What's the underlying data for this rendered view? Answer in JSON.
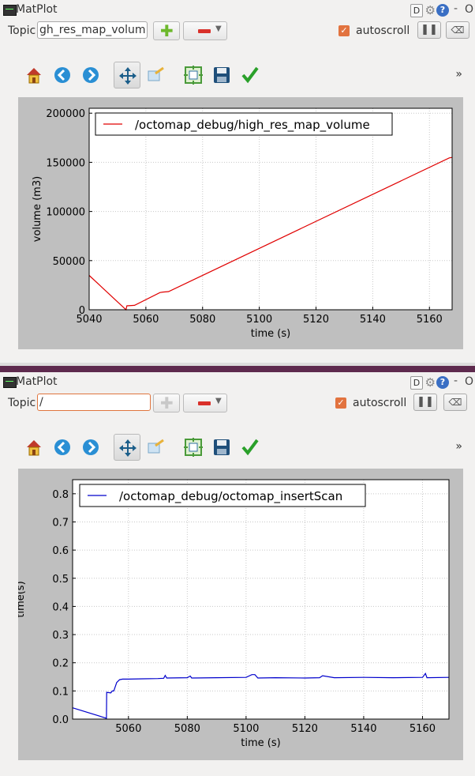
{
  "panels": [
    {
      "title": "MatPlot",
      "topic_label": "Topic",
      "topic_value": "gh_res_map_volume",
      "autoscroll_label": "autoscroll",
      "more_label": "»",
      "chart_data": {
        "type": "line",
        "xlabel": "time (s)",
        "ylabel": "volume (m3)",
        "xlim": [
          5040,
          5168
        ],
        "ylim": [
          0,
          205000
        ],
        "x_ticks": [
          5040,
          5060,
          5080,
          5100,
          5120,
          5140,
          5160
        ],
        "x_tick_labels": [
          "5040",
          "5060",
          "5080",
          "5100",
          "5120",
          "5140",
          "5160"
        ],
        "y_ticks": [
          0,
          50000,
          100000,
          150000,
          200000
        ],
        "y_tick_labels": [
          "0",
          "50000",
          "100000",
          "150000",
          "200000"
        ],
        "grid": true,
        "legend_position": "top-left",
        "series": [
          {
            "name": "/octomap_debug/high_res_map_volume",
            "color": "#e00000",
            "x": [
              5040,
              5053,
              5053.3,
              5056,
              5065,
              5066,
              5068,
              5167,
              5168
            ],
            "y": [
              35000,
              0,
              4000,
              4500,
              17500,
              18000,
              18500,
              154500,
              155000
            ]
          }
        ]
      }
    },
    {
      "title": "MatPlot",
      "topic_label": "Topic",
      "topic_value": "/",
      "autoscroll_label": "autoscroll",
      "more_label": "»",
      "chart_data": {
        "type": "line",
        "xlabel": "time (s)",
        "ylabel": "time(s)",
        "xlim": [
          5041,
          5169
        ],
        "ylim": [
          0,
          0.85
        ],
        "x_ticks": [
          5060,
          5080,
          5100,
          5120,
          5140,
          5160
        ],
        "x_tick_labels": [
          "5060",
          "5080",
          "5100",
          "5120",
          "5140",
          "5160"
        ],
        "y_ticks": [
          0,
          0.1,
          0.2,
          0.3,
          0.4,
          0.5,
          0.6,
          0.7,
          0.8
        ],
        "y_tick_labels": [
          "0.0",
          "0.1",
          "0.2",
          "0.3",
          "0.4",
          "0.5",
          "0.6",
          "0.7",
          "0.8"
        ],
        "grid": true,
        "legend_position": "top-left",
        "series": [
          {
            "name": "/octomap_debug/octomap_insertScan",
            "color": "#0000cc",
            "x": [
              5041,
              5052.5,
              5052.6,
              5054,
              5054.5,
              5055,
              5056,
              5057,
              5058,
              5060,
              5065,
              5070,
              5072,
              5072.5,
              5073,
              5080,
              5081,
              5081.5,
              5090,
              5100,
              5102,
              5103,
              5104,
              5110,
              5120,
              5125,
              5126,
              5130,
              5140,
              5150,
              5160,
              5161,
              5161.5,
              5169
            ],
            "y": [
              0.04,
              0.003,
              0.095,
              0.093,
              0.1,
              0.1,
              0.13,
              0.14,
              0.142,
              0.142,
              0.143,
              0.144,
              0.145,
              0.155,
              0.146,
              0.147,
              0.153,
              0.146,
              0.147,
              0.148,
              0.158,
              0.158,
              0.146,
              0.147,
              0.146,
              0.147,
              0.154,
              0.147,
              0.148,
              0.147,
              0.148,
              0.162,
              0.147,
              0.148
            ]
          }
        ]
      }
    }
  ]
}
